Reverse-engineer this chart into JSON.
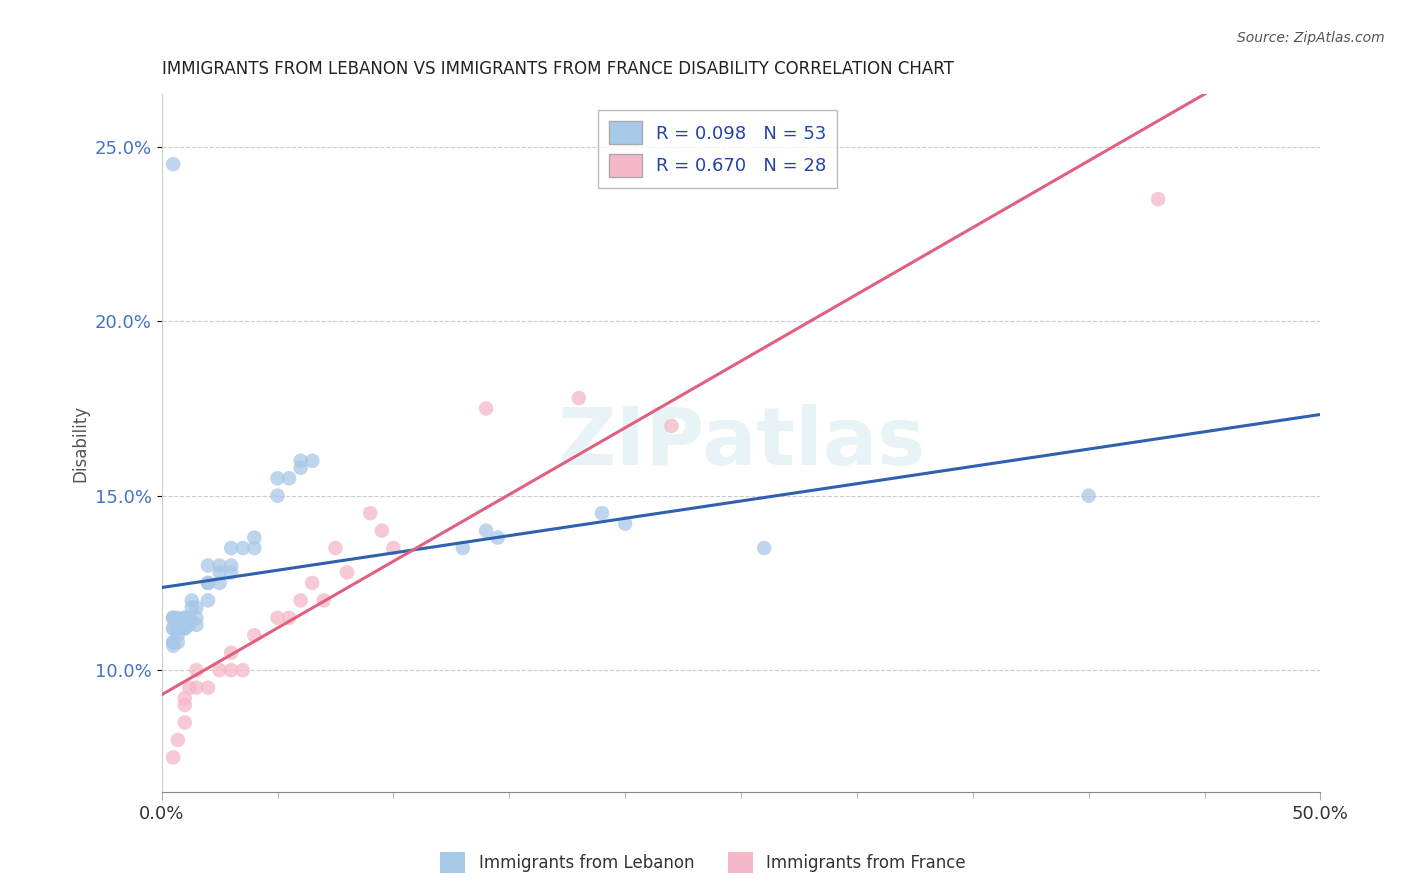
{
  "title": "IMMIGRANTS FROM LEBANON VS IMMIGRANTS FROM FRANCE DISABILITY CORRELATION CHART",
  "source": "Source: ZipAtlas.com",
  "ylabel": "Disability",
  "xlim": [
    0.0,
    0.5
  ],
  "ylim": [
    0.065,
    0.265
  ],
  "yticks": [
    0.1,
    0.15,
    0.2,
    0.25
  ],
  "ytick_labels": [
    "10.0%",
    "15.0%",
    "20.0%",
    "25.0%"
  ],
  "xticks": [
    0.0,
    0.5
  ],
  "xtick_labels": [
    "0.0%",
    "50.0%"
  ],
  "lebanon_color": "#a8c8e8",
  "france_color": "#f4b8c8",
  "lebanon_line_color": "#3060b0",
  "france_line_color": "#e06080",
  "lebanon_x": [
    0.005,
    0.005,
    0.005,
    0.005,
    0.005,
    0.005,
    0.005,
    0.005,
    0.007,
    0.007,
    0.007,
    0.007,
    0.007,
    0.01,
    0.01,
    0.01,
    0.01,
    0.01,
    0.01,
    0.012,
    0.012,
    0.013,
    0.013,
    0.015,
    0.015,
    0.015,
    0.02,
    0.02,
    0.02,
    0.02,
    0.025,
    0.025,
    0.025,
    0.03,
    0.03,
    0.03,
    0.035,
    0.04,
    0.04,
    0.05,
    0.05,
    0.055,
    0.06,
    0.06,
    0.065,
    0.13,
    0.14,
    0.145,
    0.19,
    0.2,
    0.26,
    0.4,
    0.005
  ],
  "lebanon_y": [
    0.115,
    0.115,
    0.115,
    0.112,
    0.112,
    0.108,
    0.108,
    0.107,
    0.115,
    0.112,
    0.112,
    0.11,
    0.108,
    0.115,
    0.115,
    0.113,
    0.113,
    0.112,
    0.112,
    0.115,
    0.113,
    0.12,
    0.118,
    0.118,
    0.115,
    0.113,
    0.13,
    0.125,
    0.125,
    0.12,
    0.13,
    0.128,
    0.125,
    0.135,
    0.13,
    0.128,
    0.135,
    0.138,
    0.135,
    0.155,
    0.15,
    0.155,
    0.16,
    0.158,
    0.16,
    0.135,
    0.14,
    0.138,
    0.145,
    0.142,
    0.135,
    0.15,
    0.245
  ],
  "france_x": [
    0.005,
    0.007,
    0.01,
    0.01,
    0.01,
    0.012,
    0.015,
    0.015,
    0.02,
    0.025,
    0.03,
    0.03,
    0.035,
    0.04,
    0.05,
    0.055,
    0.06,
    0.065,
    0.07,
    0.075,
    0.08,
    0.09,
    0.095,
    0.1,
    0.14,
    0.18,
    0.22,
    0.43
  ],
  "france_y": [
    0.075,
    0.08,
    0.085,
    0.09,
    0.092,
    0.095,
    0.095,
    0.1,
    0.095,
    0.1,
    0.1,
    0.105,
    0.1,
    0.11,
    0.115,
    0.115,
    0.12,
    0.125,
    0.12,
    0.135,
    0.128,
    0.145,
    0.14,
    0.135,
    0.175,
    0.178,
    0.17,
    0.235
  ]
}
